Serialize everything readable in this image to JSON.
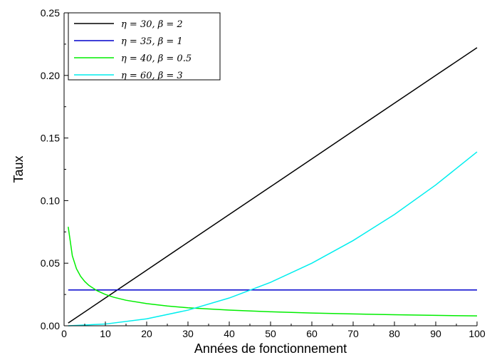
{
  "chart_data": {
    "type": "line",
    "xlabel": "Années de fonctionnement",
    "ylabel": "Taux",
    "xlim": [
      0,
      100
    ],
    "ylim": [
      0,
      0.25
    ],
    "xticks": [
      0,
      10,
      20,
      30,
      40,
      50,
      60,
      70,
      80,
      90,
      100
    ],
    "yticks": [
      0.0,
      0.05,
      0.1,
      0.15,
      0.2,
      0.25
    ],
    "xtick_labels": [
      "0",
      "10",
      "20",
      "30",
      "40",
      "50",
      "60",
      "70",
      "80",
      "90",
      "100"
    ],
    "ytick_labels": [
      "0.00",
      "0.05",
      "0.10",
      "0.15",
      "0.20",
      "0.25"
    ],
    "grid": false,
    "legend_position": "top-left",
    "series": [
      {
        "name": "η = 30,  β = 2",
        "color": "#000000",
        "x": [
          1,
          10,
          20,
          30,
          40,
          50,
          60,
          70,
          80,
          90,
          100
        ],
        "y": [
          0.0022,
          0.0222,
          0.0444,
          0.0667,
          0.0889,
          0.1111,
          0.1333,
          0.1556,
          0.1778,
          0.2,
          0.2222
        ]
      },
      {
        "name": "η = 35,  β = 1",
        "color": "#0000cc",
        "x": [
          1,
          10,
          20,
          30,
          40,
          50,
          60,
          70,
          80,
          90,
          100
        ],
        "y": [
          0.0286,
          0.0286,
          0.0286,
          0.0286,
          0.0286,
          0.0286,
          0.0286,
          0.0286,
          0.0286,
          0.0286,
          0.0286
        ]
      },
      {
        "name": "η = 40,  β = 0.5",
        "color": "#00ee00",
        "x": [
          1,
          2,
          3,
          4,
          5,
          6,
          8,
          10,
          12,
          15,
          20,
          25,
          30,
          40,
          50,
          60,
          70,
          80,
          90,
          100
        ],
        "y": [
          0.0791,
          0.0559,
          0.0456,
          0.0395,
          0.0354,
          0.0323,
          0.028,
          0.025,
          0.0228,
          0.0204,
          0.0177,
          0.0158,
          0.0144,
          0.0125,
          0.0112,
          0.0102,
          0.0095,
          0.0088,
          0.0083,
          0.0079
        ]
      },
      {
        "name": "η = 60,  β = 3",
        "color": "#00eeee",
        "x": [
          1,
          10,
          20,
          30,
          40,
          50,
          60,
          70,
          80,
          90,
          100
        ],
        "y": [
          1.39e-05,
          0.00139,
          0.00556,
          0.0125,
          0.0222,
          0.0347,
          0.05,
          0.0681,
          0.0889,
          0.1125,
          0.1389
        ]
      }
    ]
  }
}
